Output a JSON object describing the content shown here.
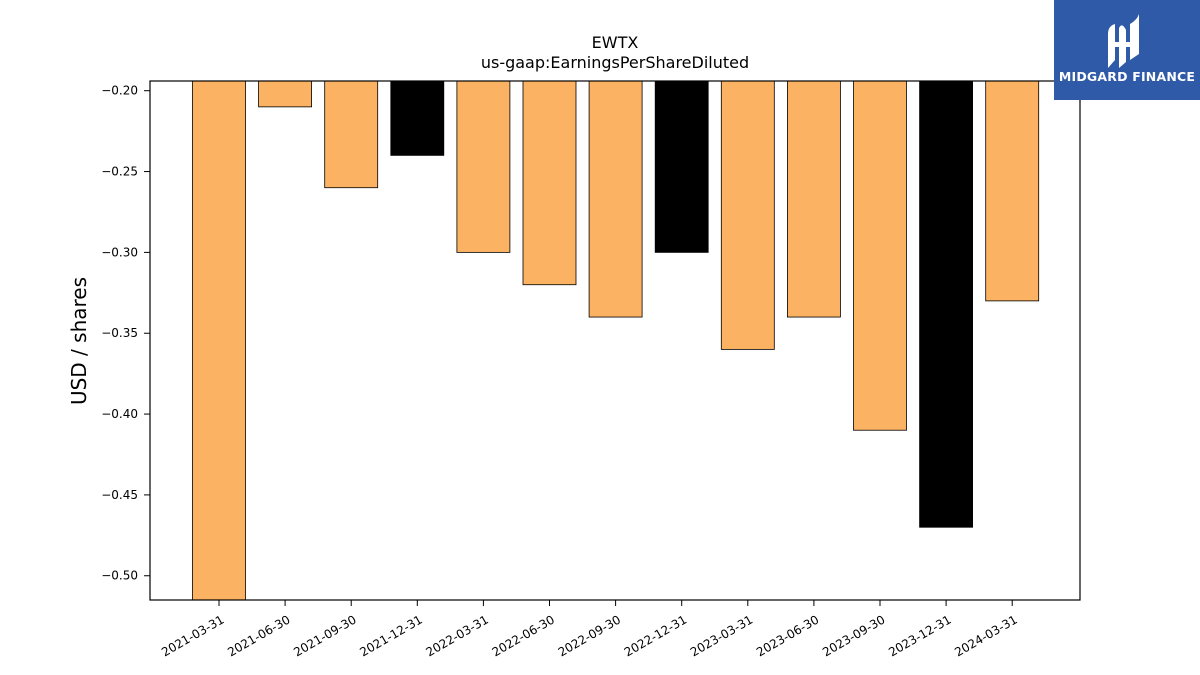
{
  "chart_data": {
    "type": "bar",
    "title": "EWTX",
    "subtitle": "us-gaap:EarningsPerShareDiluted",
    "xlabel": "",
    "ylabel": "USD / shares",
    "ylim": [
      -0.515,
      -0.194
    ],
    "yticks": [
      -0.2,
      -0.25,
      -0.3,
      -0.35,
      -0.4,
      -0.45,
      -0.5
    ],
    "ytick_labels": [
      "−0.20",
      "−0.25",
      "−0.30",
      "−0.35",
      "−0.40",
      "−0.45",
      "−0.50"
    ],
    "categories": [
      "2021-03-31",
      "2021-06-30",
      "2021-09-30",
      "2021-12-31",
      "2022-03-31",
      "2022-06-30",
      "2022-09-30",
      "2022-12-31",
      "2023-03-31",
      "2023-06-30",
      "2023-09-30",
      "2023-12-31",
      "2024-03-31"
    ],
    "values": [
      -0.52,
      -0.21,
      -0.26,
      -0.24,
      -0.3,
      -0.32,
      -0.34,
      -0.3,
      -0.36,
      -0.34,
      -0.41,
      -0.47,
      -0.33
    ],
    "bar_colors": [
      "#fbb262",
      "#fbb262",
      "#fbb262",
      "#000000",
      "#fbb262",
      "#fbb262",
      "#fbb262",
      "#000000",
      "#fbb262",
      "#fbb262",
      "#fbb262",
      "#000000",
      "#fbb262"
    ],
    "grid": false,
    "legend": "none"
  },
  "logo": {
    "text": "MIDGARD FINANCE",
    "background": "#2f5aa8"
  }
}
